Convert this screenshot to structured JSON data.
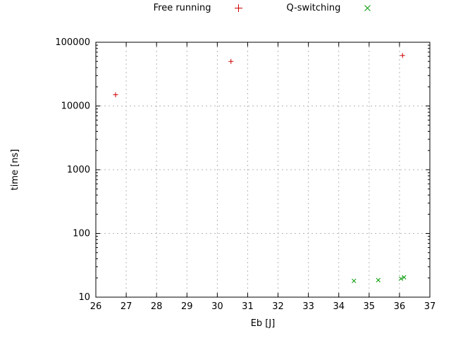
{
  "legend": {
    "items": [
      {
        "label": "Free running",
        "marker": "plus",
        "color": "#cc0000"
      },
      {
        "label": "Q-switching",
        "marker": "cross",
        "color": "#009900"
      }
    ]
  },
  "chart_data": {
    "type": "scatter",
    "title": "",
    "xlabel": "Eb [J]",
    "ylabel": "time [ns]",
    "xlim": [
      26,
      37
    ],
    "ylim": [
      10,
      100000
    ],
    "y_scale": "log",
    "grid": true,
    "grid_style": "dashed",
    "legend_position": "top-center",
    "xticks": [
      26,
      27,
      28,
      29,
      30,
      31,
      32,
      33,
      34,
      35,
      36,
      37
    ],
    "yticks": [
      10,
      100,
      1000,
      10000,
      100000
    ],
    "series": [
      {
        "name": "Free running",
        "marker": "plus",
        "color": "#cc0000",
        "points": [
          [
            26.65,
            15000
          ],
          [
            30.45,
            50000
          ],
          [
            36.1,
            62000
          ]
        ]
      },
      {
        "name": "Q-switching",
        "marker": "cross",
        "color": "#009900",
        "points": [
          [
            34.5,
            18
          ],
          [
            35.3,
            18.5
          ],
          [
            36.05,
            19.5
          ],
          [
            36.15,
            20.5
          ]
        ]
      }
    ]
  }
}
